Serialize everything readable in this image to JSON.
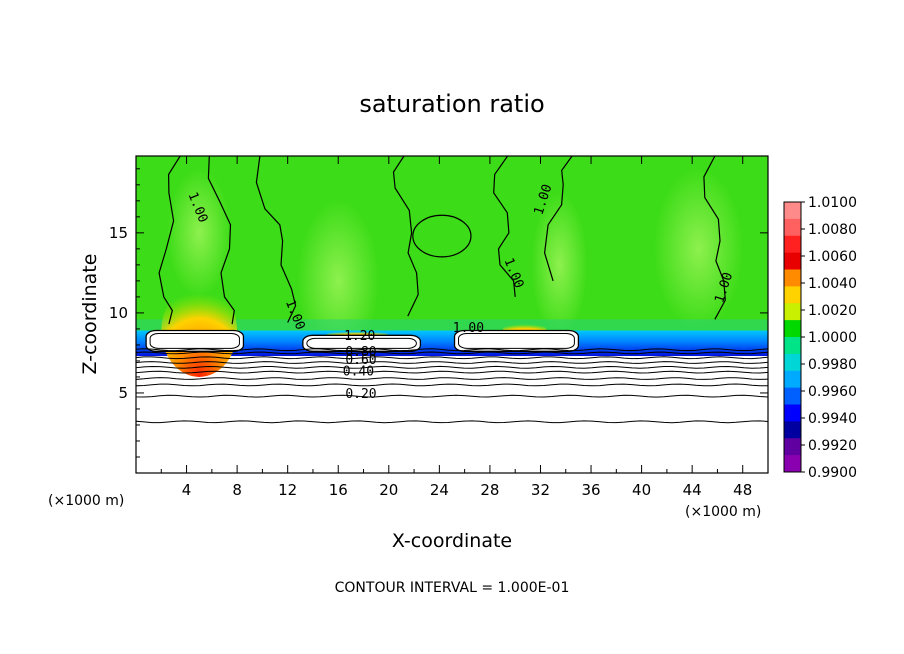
{
  "chart_data": {
    "type": "heatmap",
    "title": "saturation ratio",
    "xlabel": "X-coordinate",
    "ylabel": "Z-coordinate",
    "x_unit_left": "(×1000 m)",
    "x_unit_right": "(×1000 m)",
    "footer": "CONTOUR INTERVAL = 1.000E-01",
    "xlim": [
      0,
      50
    ],
    "ylim": [
      0,
      19.8
    ],
    "x_ticks": [
      4,
      8,
      12,
      16,
      20,
      24,
      28,
      32,
      36,
      40,
      44,
      48
    ],
    "y_ticks": [
      5,
      10,
      15
    ],
    "colorbar": {
      "labels": [
        "1.0100",
        "1.0080",
        "1.0060",
        "1.0040",
        "1.0020",
        "1.0000",
        "0.9980",
        "0.9960",
        "0.9940",
        "0.9920",
        "0.9900"
      ],
      "colors": [
        "#ff8a8a",
        "#ff6060",
        "#ff2020",
        "#e80000",
        "#ff8c00",
        "#ffd200",
        "#c8f000",
        "#00d800",
        "#00e488",
        "#00d6d6",
        "#00aaff",
        "#0060ff",
        "#0000ff",
        "#0000a0",
        "#6000a0",
        "#8a00b0"
      ]
    },
    "contour_labels": [
      {
        "text": "1.00",
        "x": 4.6,
        "z": 16.5
      },
      {
        "text": "1.00",
        "x": 32.5,
        "z": 17.0
      },
      {
        "text": "1.00",
        "x": 29.6,
        "z": 12.4
      },
      {
        "text": "1.00",
        "x": 46.8,
        "z": 11.5
      },
      {
        "text": "1.00",
        "x": 12.3,
        "z": 9.8
      },
      {
        "text": "1.00",
        "x": 26.3,
        "z": 8.8
      },
      {
        "text": "1.20",
        "x": 17.7,
        "z": 8.3
      },
      {
        "text": "0.80",
        "x": 17.8,
        "z": 7.3
      },
      {
        "text": "0.60",
        "x": 17.8,
        "z": 6.8
      },
      {
        "text": "0.40",
        "x": 17.6,
        "z": 6.1
      },
      {
        "text": "0.20",
        "x": 17.8,
        "z": 4.7
      }
    ],
    "contour_levels_z": [
      7.7,
      7.5,
      7.2,
      6.9,
      6.6,
      6.3,
      5.9,
      5.5,
      4.8,
      3.2
    ],
    "cloud_regions": [
      {
        "x0": 0.8,
        "x1": 8.5,
        "z0": 7.6,
        "z1": 8.9
      },
      {
        "x0": 13.2,
        "x1": 22.5,
        "z0": 7.6,
        "z1": 8.6
      },
      {
        "x0": 25.2,
        "x1": 35.0,
        "z0": 7.6,
        "z1": 8.9
      }
    ],
    "supersaturation_regions": [
      {
        "x0": 2.0,
        "x1": 8.0,
        "z_base": 8.9,
        "peak_z": 11.8,
        "peak_x": 5.0
      },
      {
        "x0": 29.0,
        "x1": 32.5,
        "z_base": 8.9,
        "peak_z": 9.4,
        "peak_x": 31.0
      },
      {
        "x0": 15.0,
        "x1": 20.0,
        "z_base": 8.6,
        "peak_z": 8.9,
        "peak_x": 17.5
      }
    ]
  }
}
